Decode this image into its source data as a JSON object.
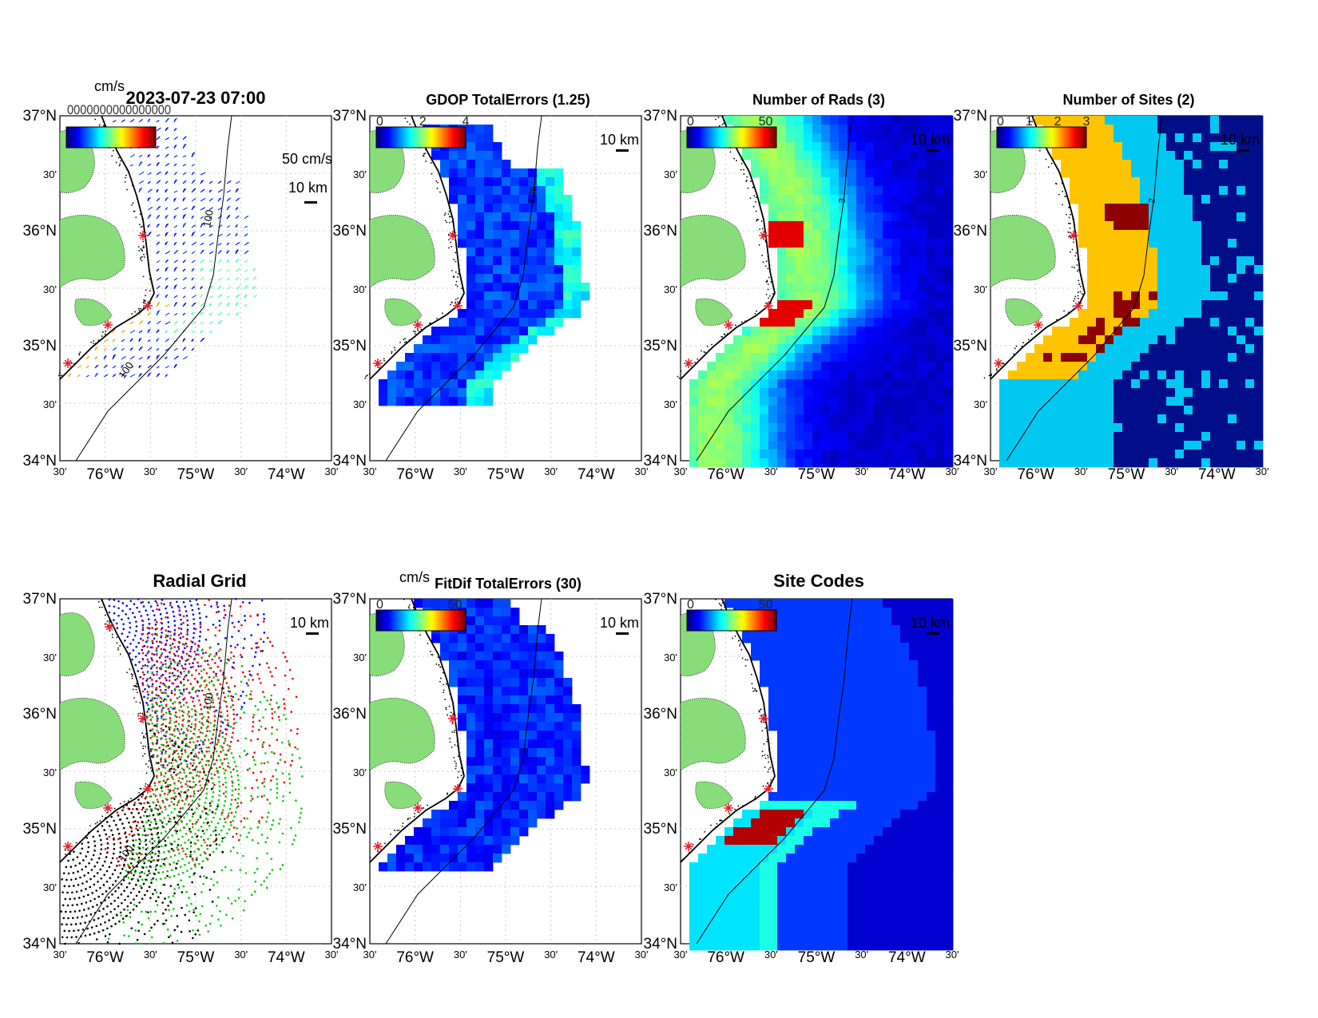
{
  "figure": {
    "timestamp": "2023-07-23 07:00",
    "lat_labels": [
      "37°N",
      "30'",
      "36°N",
      "30'",
      "35°N",
      "30'",
      "34°N"
    ],
    "lon_labels": [
      "30'",
      "76°W",
      "30'",
      "75°W",
      "30'",
      "74°W",
      "30'"
    ],
    "scale_bar_label": "10 km",
    "vector_scale_label": "50 cm/s",
    "depth_contour_label": "100",
    "colors": {
      "land": "#88dd7a",
      "coastline": "#000000",
      "site_marker": "#e8202a",
      "grid_line": "#c8c8c8"
    }
  },
  "panels": [
    {
      "id": "total-vectors",
      "title": "2023-07-23 07:00",
      "colorbar_unit": "cm/s",
      "colorbar_ticks": [],
      "overlap_label": "0000000000000000",
      "type": "vectors"
    },
    {
      "id": "gdop-total-errors",
      "title": "GDOP TotalErrors (1.25)",
      "colorbar_unit": "",
      "colorbar_ticks": [
        "0",
        "2",
        "4"
      ],
      "contour_label": "1.25",
      "type": "grid"
    },
    {
      "id": "number-of-rads",
      "title": "Number of Rads (3)",
      "colorbar_unit": "",
      "colorbar_ticks": [
        "0",
        "50"
      ],
      "contour_label": "3",
      "type": "grid"
    },
    {
      "id": "number-of-sites",
      "title": "Number of Sites (2)",
      "colorbar_unit": "",
      "colorbar_ticks": [
        "0",
        "1",
        "2",
        "3"
      ],
      "contour_label": "2",
      "type": "grid"
    },
    {
      "id": "radial-grid",
      "title": "Radial Grid",
      "colorbar_unit": "",
      "colorbar_ticks": [],
      "type": "dots"
    },
    {
      "id": "fitdif-total-errors",
      "title": "FitDif TotalErrors (30)",
      "colorbar_unit": "cm/s",
      "colorbar_ticks": [
        "0",
        "50"
      ],
      "contour_label": "30",
      "type": "grid"
    },
    {
      "id": "site-codes",
      "title": "Site Codes",
      "colorbar_unit": "",
      "colorbar_ticks": [
        "0",
        "50"
      ],
      "type": "grid"
    }
  ]
}
